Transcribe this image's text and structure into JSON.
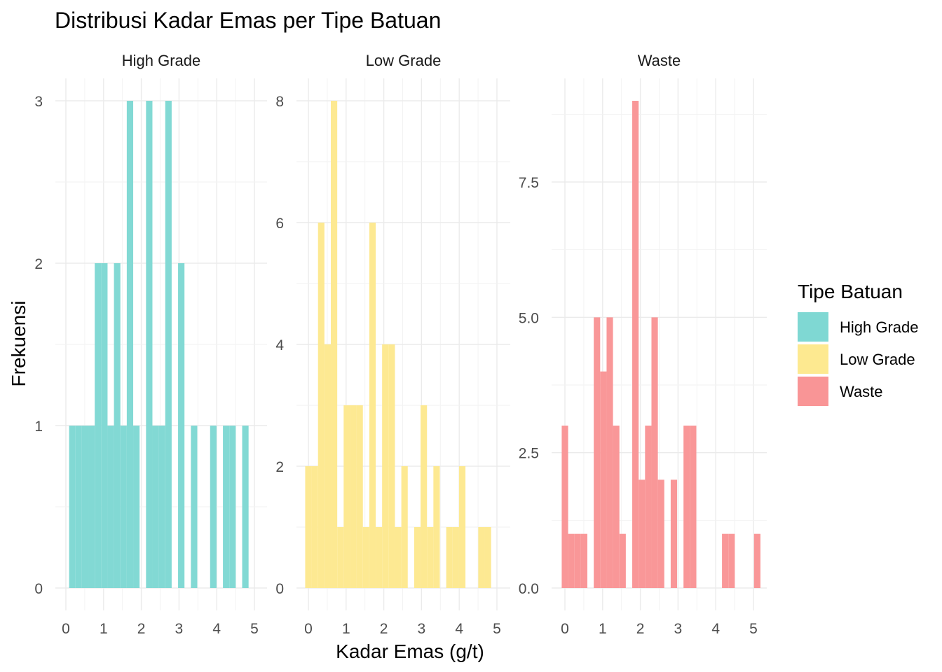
{
  "chart_data": {
    "type": "bar",
    "subtype": "faceted histogram",
    "title": "Distribusi Kadar Emas per Tipe Batuan",
    "xlabel": "Kadar Emas (g/t)",
    "ylabel": "Frekuensi",
    "legend": {
      "title": "Tipe Batuan",
      "position": "right",
      "entries": [
        {
          "label": "High Grade",
          "color": "#7fd8d3"
        },
        {
          "label": "Low Grade",
          "color": "#fde990"
        },
        {
          "label": "Waste",
          "color": "#f99596"
        }
      ]
    },
    "grid": true,
    "bin_width": 0.17,
    "facets": [
      {
        "name": "High Grade",
        "color": "#7fd8d3",
        "xlim": [
          0,
          5
        ],
        "x_ticks": [
          "0",
          "1",
          "2",
          "3",
          "4",
          "5"
        ],
        "ylim": [
          0,
          3
        ],
        "y_ticks": [
          "0",
          "1",
          "2",
          "3"
        ],
        "bin_centers": [
          0.17,
          0.34,
          0.51,
          0.68,
          0.85,
          1.02,
          1.19,
          1.36,
          1.53,
          1.7,
          1.87,
          2.21,
          2.38,
          2.55,
          2.72,
          2.89,
          3.06,
          3.4,
          3.91,
          4.25,
          4.42,
          4.76
        ],
        "counts": [
          1,
          1,
          1,
          1,
          2,
          2,
          1,
          2,
          1,
          3,
          1,
          3,
          1,
          1,
          3,
          0,
          2,
          1,
          1,
          1,
          1,
          1
        ]
      },
      {
        "name": "Low Grade",
        "color": "#fde990",
        "xlim": [
          0,
          5
        ],
        "x_ticks": [
          "0",
          "1",
          "2",
          "3",
          "4",
          "5"
        ],
        "ylim": [
          0,
          8
        ],
        "y_ticks": [
          "0",
          "2",
          "4",
          "6",
          "8"
        ],
        "bin_centers": [
          0.0,
          0.17,
          0.34,
          0.51,
          0.68,
          0.85,
          1.02,
          1.19,
          1.36,
          1.53,
          1.7,
          1.87,
          2.04,
          2.21,
          2.38,
          2.55,
          2.89,
          3.06,
          3.23,
          3.4,
          3.74,
          3.91,
          4.08,
          4.59,
          4.76
        ],
        "counts": [
          2,
          2,
          6,
          4,
          8,
          1,
          3,
          3,
          3,
          1,
          6,
          1,
          4,
          4,
          1,
          2,
          1,
          3,
          1,
          2,
          1,
          1,
          2,
          1,
          1
        ]
      },
      {
        "name": "Waste",
        "color": "#f99596",
        "xlim": [
          0,
          5
        ],
        "x_ticks": [
          "0",
          "1",
          "2",
          "3",
          "4",
          "5"
        ],
        "ylim": [
          0,
          9
        ],
        "y_ticks": [
          "0.0",
          "2.5",
          "5.0",
          "7.5"
        ],
        "y_tick_values": [
          0,
          2.5,
          5.0,
          7.5
        ],
        "bin_centers": [
          0.0,
          0.17,
          0.34,
          0.51,
          0.85,
          1.02,
          1.19,
          1.36,
          1.53,
          1.87,
          2.04,
          2.21,
          2.38,
          2.55,
          2.89,
          3.23,
          3.4,
          4.25,
          4.42,
          5.1
        ],
        "counts": [
          3,
          1,
          1,
          1,
          5,
          4,
          5,
          3,
          1,
          9,
          2,
          3,
          5,
          2,
          2,
          3,
          3,
          1,
          1,
          1
        ]
      }
    ]
  }
}
